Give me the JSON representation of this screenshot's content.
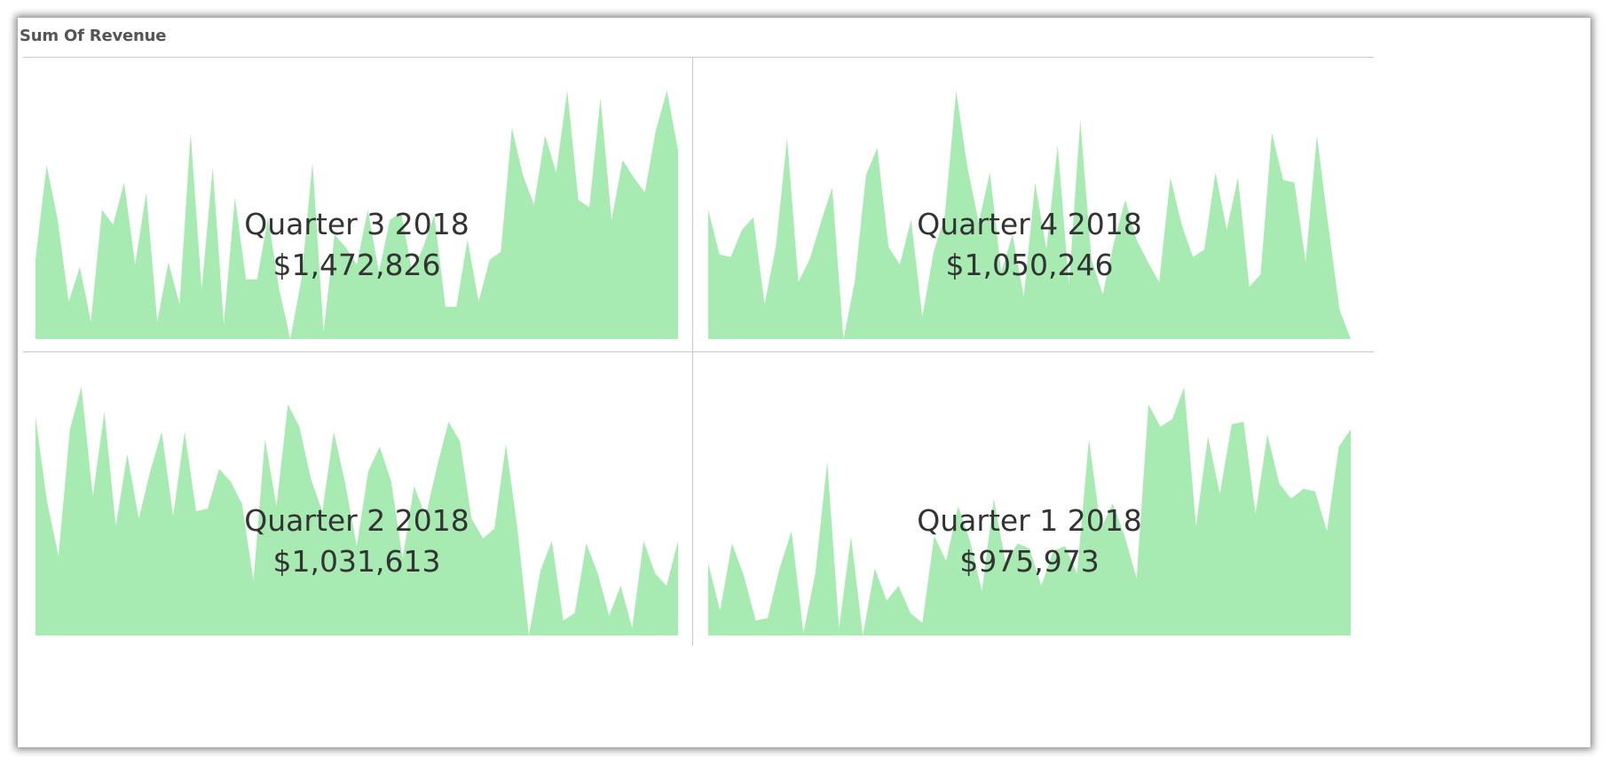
{
  "title": "Sum Of Revenue",
  "colors": {
    "area": "#a8ebb2",
    "grid": "#c8c8c8",
    "text": "#333333"
  },
  "chart_data": {
    "type": "area",
    "title": "Sum Of Revenue",
    "ylim": [
      0,
      100
    ],
    "tiles": [
      {
        "name": "Quarter 3 2018",
        "value": "$1,472,826",
        "series": [
          32,
          70,
          48,
          15,
          29,
          7,
          52,
          46,
          63,
          30,
          59,
          7,
          31,
          14,
          83,
          20,
          69,
          6,
          57,
          24,
          24,
          49,
          20,
          0,
          24,
          71,
          3,
          42,
          37,
          30,
          52,
          27,
          48,
          51,
          27,
          37,
          50,
          13,
          13,
          40,
          15,
          32,
          35,
          85,
          66,
          54,
          82,
          67,
          100,
          56,
          53,
          97,
          48,
          72,
          65,
          59,
          84,
          100,
          76
        ],
        "ylim": [
          0,
          100
        ]
      },
      {
        "name": "Quarter 4 2018",
        "value": "$1,050,246",
        "series": [
          52,
          34,
          33,
          44,
          49,
          14,
          37,
          81,
          23,
          32,
          47,
          61,
          0,
          23,
          66,
          77,
          37,
          30,
          48,
          9,
          35,
          50,
          100,
          69,
          47,
          67,
          27,
          42,
          17,
          63,
          36,
          78,
          22,
          88,
          32,
          18,
          39,
          56,
          40,
          31,
          23,
          65,
          46,
          33,
          36,
          67,
          44,
          65,
          21,
          26,
          83,
          64,
          63,
          31,
          82,
          46,
          12,
          0
        ],
        "ylim": [
          0,
          100
        ]
      },
      {
        "name": "Quarter 2 2018",
        "value": "$1,031,613",
        "series": [
          88,
          54,
          32,
          83,
          100,
          56,
          90,
          44,
          73,
          47,
          66,
          82,
          48,
          82,
          50,
          51,
          67,
          62,
          53,
          22,
          79,
          52,
          93,
          84,
          63,
          50,
          82,
          61,
          36,
          66,
          76,
          62,
          31,
          60,
          48,
          68,
          86,
          78,
          47,
          39,
          43,
          77,
          43,
          0,
          26,
          38,
          6,
          9,
          37,
          25,
          8,
          20,
          3,
          38,
          25,
          20,
          38
        ],
        "ylim": [
          0,
          100
        ]
      },
      {
        "name": "Quarter 1 2018",
        "value": "$975,973",
        "series": [
          29,
          10,
          37,
          24,
          6,
          7,
          27,
          42,
          1,
          25,
          70,
          3,
          40,
          0,
          27,
          14,
          20,
          9,
          5,
          40,
          30,
          52,
          38,
          18,
          55,
          29,
          37,
          35,
          20,
          34,
          36,
          25,
          79,
          43,
          53,
          40,
          23,
          93,
          84,
          87,
          100,
          44,
          80,
          57,
          85,
          86,
          49,
          81,
          61,
          55,
          59,
          58,
          42,
          76,
          83
        ],
        "ylim": [
          0,
          100
        ]
      }
    ]
  }
}
